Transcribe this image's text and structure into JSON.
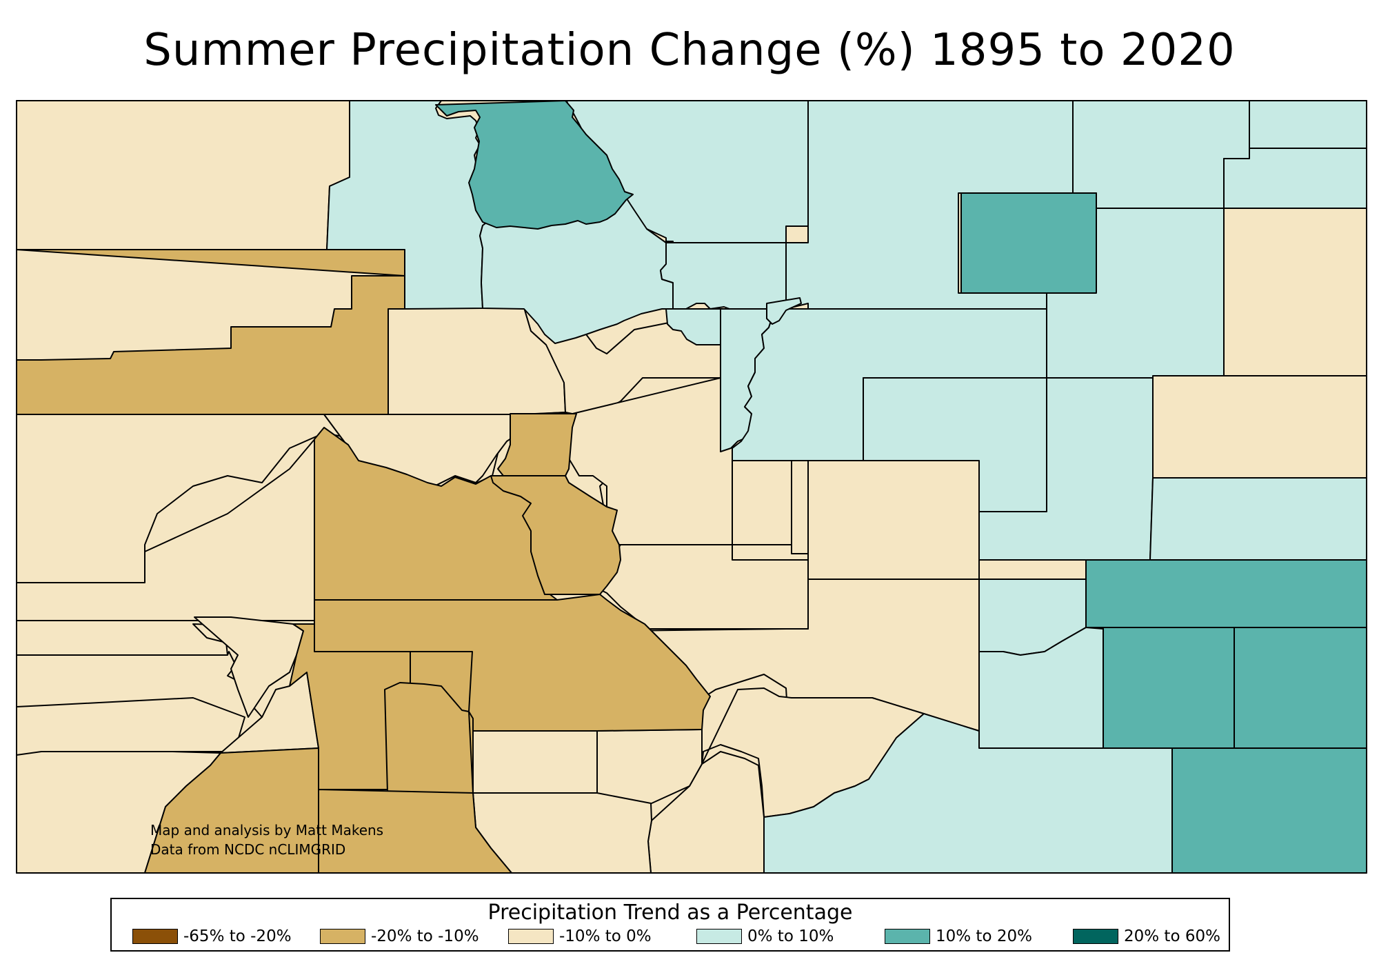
{
  "title": "Summer Precipitation Change (%) 1895 to 2020",
  "credit": {
    "line1": "Map and analysis by Matt Makens",
    "line2": "Data from NCDC nCLIMGRID"
  },
  "colors": {
    "strong_decrease": "#8B5008",
    "decrease": "#D6B264",
    "slight_decrease": "#F5E6C3",
    "slight_increase": "#C7EAE4",
    "increase": "#5BB4AC",
    "strong_increase": "#01655E",
    "outline": "#000000"
  },
  "legend": {
    "title": "Precipitation Trend as a Percentage",
    "items": [
      {
        "label": "-65% to -20%",
        "color": "#8B5008"
      },
      {
        "label": "-20% to -10%",
        "color": "#D6B264"
      },
      {
        "label": "-10% to 0%",
        "color": "#F5E6C3"
      },
      {
        "label": "0% to 10%",
        "color": "#C7EAE4"
      },
      {
        "label": "10% to 20%",
        "color": "#5BB4AC"
      },
      {
        "label": "20% to 60%",
        "color": "#01655E"
      }
    ]
  }
}
